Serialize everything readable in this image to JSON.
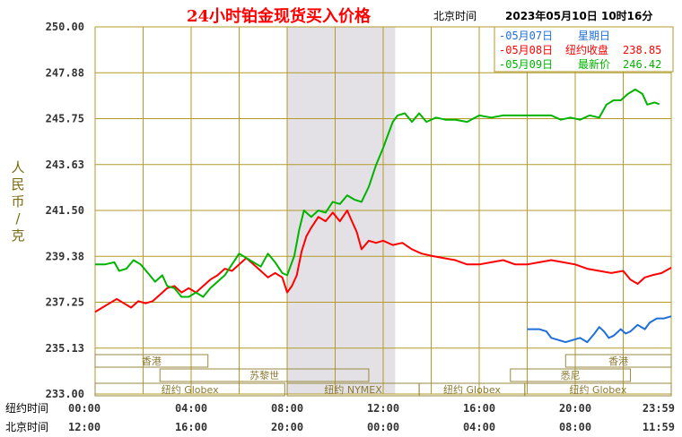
{
  "header": {
    "title": "24小时铂金现货买入价格",
    "timezone_label": "北京时间",
    "datetime": "2023年05月10日 10时16分"
  },
  "colors": {
    "grid": "#b39a2a",
    "blue": "#1e6fd9",
    "red": "#ff0000",
    "green": "#00b400",
    "shade": "#e3e0e6",
    "session": "#9a8a40"
  },
  "chart_data": {
    "type": "line",
    "title": "24小时铂金现货买入价格",
    "ylabel": "人民币/克",
    "ylim": [
      233.0,
      250.0
    ],
    "y_ticks": [
      "250.00",
      "247.88",
      "245.75",
      "243.63",
      "241.50",
      "239.38",
      "237.25",
      "235.13",
      "233.00"
    ],
    "x_ticks_ny": [
      "00:00",
      "04:00",
      "08:00",
      "12:00",
      "16:00",
      "20:00",
      "23:59"
    ],
    "x_ticks_bj": [
      "12:00",
      "16:00",
      "20:00",
      "00:00",
      "04:00",
      "08:00",
      "11:59"
    ],
    "x_row_labels": [
      "纽约时间",
      "北京时间"
    ],
    "xlim_hours": [
      0,
      24
    ],
    "shaded_hours": [
      8,
      12.5
    ],
    "legend": [
      {
        "prefix": "-05月07日",
        "label": "星期日",
        "value": "",
        "color": "#1e6fd9"
      },
      {
        "prefix": "-05月08日",
        "label": "纽约收盘",
        "value": "238.85",
        "color": "#ff0000"
      },
      {
        "prefix": "-05月09日",
        "label": "最新价",
        "value": "246.42",
        "color": "#00b400"
      }
    ],
    "sessions": [
      {
        "label": "香港",
        "start": 0.0,
        "end": 4.7
      },
      {
        "label": "苏黎世",
        "start": 2.7,
        "end": 11.4
      },
      {
        "label": "纽约 Globex",
        "start": 0.0,
        "end": 7.9
      },
      {
        "label": "纽约 NYMEX",
        "start": 8.0,
        "end": 13.5
      },
      {
        "label": "纽约 Globex",
        "start": 13.5,
        "end": 17.9
      },
      {
        "label": "香港",
        "start": 19.6,
        "end": 24.0
      },
      {
        "label": "悉尼",
        "start": 17.3,
        "end": 22.3
      },
      {
        "label": "纽约 Globex",
        "start": 17.9,
        "end": 24.0
      }
    ],
    "series": [
      {
        "name": "05月07日",
        "color": "#1e6fd9",
        "points": [
          [
            18.0,
            236.0
          ],
          [
            18.5,
            236.0
          ],
          [
            18.8,
            235.9
          ],
          [
            19.0,
            235.6
          ],
          [
            19.3,
            235.5
          ],
          [
            19.6,
            235.4
          ],
          [
            19.9,
            235.5
          ],
          [
            20.2,
            235.6
          ],
          [
            20.5,
            235.4
          ],
          [
            20.8,
            235.8
          ],
          [
            21.0,
            236.1
          ],
          [
            21.2,
            235.9
          ],
          [
            21.4,
            235.6
          ],
          [
            21.6,
            235.7
          ],
          [
            21.9,
            236.0
          ],
          [
            22.1,
            235.8
          ],
          [
            22.3,
            235.9
          ],
          [
            22.6,
            236.2
          ],
          [
            22.9,
            236.0
          ],
          [
            23.1,
            236.3
          ],
          [
            23.4,
            236.5
          ],
          [
            23.7,
            236.5
          ],
          [
            24.0,
            236.6
          ]
        ]
      },
      {
        "name": "05月08日",
        "color": "#ff0000",
        "points": [
          [
            0.0,
            236.8
          ],
          [
            0.3,
            237.0
          ],
          [
            0.6,
            237.2
          ],
          [
            0.9,
            237.4
          ],
          [
            1.2,
            237.2
          ],
          [
            1.5,
            237.0
          ],
          [
            1.8,
            237.3
          ],
          [
            2.1,
            237.2
          ],
          [
            2.4,
            237.3
          ],
          [
            2.7,
            237.6
          ],
          [
            3.0,
            237.9
          ],
          [
            3.3,
            238.0
          ],
          [
            3.6,
            237.7
          ],
          [
            3.9,
            237.9
          ],
          [
            4.2,
            237.7
          ],
          [
            4.5,
            238.0
          ],
          [
            4.8,
            238.3
          ],
          [
            5.1,
            238.5
          ],
          [
            5.4,
            238.8
          ],
          [
            5.7,
            238.7
          ],
          [
            6.0,
            239.0
          ],
          [
            6.3,
            239.3
          ],
          [
            6.6,
            239.0
          ],
          [
            6.9,
            238.7
          ],
          [
            7.2,
            238.4
          ],
          [
            7.5,
            238.6
          ],
          [
            7.8,
            238.4
          ],
          [
            8.0,
            237.7
          ],
          [
            8.2,
            238.0
          ],
          [
            8.4,
            238.5
          ],
          [
            8.6,
            239.6
          ],
          [
            8.8,
            240.3
          ],
          [
            9.0,
            240.7
          ],
          [
            9.3,
            241.2
          ],
          [
            9.6,
            241.0
          ],
          [
            9.9,
            241.4
          ],
          [
            10.2,
            241.0
          ],
          [
            10.5,
            241.5
          ],
          [
            10.7,
            241.0
          ],
          [
            10.9,
            240.5
          ],
          [
            11.1,
            239.7
          ],
          [
            11.4,
            240.1
          ],
          [
            11.7,
            240.0
          ],
          [
            12.0,
            240.1
          ],
          [
            12.4,
            239.9
          ],
          [
            12.8,
            240.0
          ],
          [
            13.2,
            239.7
          ],
          [
            13.6,
            239.5
          ],
          [
            14.0,
            239.4
          ],
          [
            14.5,
            239.3
          ],
          [
            15.0,
            239.2
          ],
          [
            15.5,
            239.0
          ],
          [
            16.0,
            239.0
          ],
          [
            16.5,
            239.1
          ],
          [
            17.0,
            239.2
          ],
          [
            17.5,
            239.0
          ],
          [
            18.0,
            239.0
          ],
          [
            18.5,
            239.1
          ],
          [
            19.0,
            239.2
          ],
          [
            19.5,
            239.1
          ],
          [
            20.0,
            239.0
          ],
          [
            20.5,
            238.8
          ],
          [
            21.0,
            238.7
          ],
          [
            21.5,
            238.6
          ],
          [
            22.0,
            238.7
          ],
          [
            22.3,
            238.3
          ],
          [
            22.6,
            238.1
          ],
          [
            22.9,
            238.4
          ],
          [
            23.2,
            238.5
          ],
          [
            23.6,
            238.6
          ],
          [
            24.0,
            238.85
          ]
        ]
      },
      {
        "name": "05月09日",
        "color": "#00b400",
        "points": [
          [
            0.0,
            239.0
          ],
          [
            0.4,
            239.0
          ],
          [
            0.8,
            239.1
          ],
          [
            1.0,
            238.7
          ],
          [
            1.3,
            238.8
          ],
          [
            1.6,
            239.2
          ],
          [
            1.9,
            239.0
          ],
          [
            2.2,
            238.6
          ],
          [
            2.5,
            238.2
          ],
          [
            2.8,
            238.5
          ],
          [
            3.0,
            238.0
          ],
          [
            3.3,
            237.9
          ],
          [
            3.6,
            237.5
          ],
          [
            3.9,
            237.5
          ],
          [
            4.2,
            237.7
          ],
          [
            4.5,
            237.5
          ],
          [
            4.8,
            237.9
          ],
          [
            5.1,
            238.2
          ],
          [
            5.4,
            238.5
          ],
          [
            5.7,
            239.0
          ],
          [
            6.0,
            239.5
          ],
          [
            6.3,
            239.3
          ],
          [
            6.6,
            239.1
          ],
          [
            6.9,
            238.9
          ],
          [
            7.2,
            239.5
          ],
          [
            7.5,
            239.1
          ],
          [
            7.8,
            238.6
          ],
          [
            8.0,
            238.5
          ],
          [
            8.3,
            239.4
          ],
          [
            8.5,
            240.6
          ],
          [
            8.7,
            241.5
          ],
          [
            9.0,
            241.2
          ],
          [
            9.3,
            241.5
          ],
          [
            9.6,
            241.4
          ],
          [
            9.9,
            241.9
          ],
          [
            10.2,
            241.8
          ],
          [
            10.5,
            242.2
          ],
          [
            10.8,
            242.0
          ],
          [
            11.1,
            241.9
          ],
          [
            11.4,
            242.6
          ],
          [
            11.7,
            243.6
          ],
          [
            12.0,
            244.4
          ],
          [
            12.2,
            245.0
          ],
          [
            12.4,
            245.6
          ],
          [
            12.6,
            245.9
          ],
          [
            12.9,
            246.0
          ],
          [
            13.2,
            245.6
          ],
          [
            13.5,
            246.0
          ],
          [
            13.8,
            245.6
          ],
          [
            14.2,
            245.8
          ],
          [
            14.6,
            245.7
          ],
          [
            15.0,
            245.7
          ],
          [
            15.5,
            245.6
          ],
          [
            16.0,
            245.9
          ],
          [
            16.5,
            245.8
          ],
          [
            17.0,
            245.9
          ],
          [
            17.5,
            245.9
          ],
          [
            18.0,
            245.9
          ],
          [
            18.5,
            245.9
          ],
          [
            19.0,
            245.9
          ],
          [
            19.4,
            245.7
          ],
          [
            19.8,
            245.8
          ],
          [
            20.2,
            245.7
          ],
          [
            20.6,
            245.9
          ],
          [
            21.0,
            245.8
          ],
          [
            21.3,
            246.4
          ],
          [
            21.6,
            246.6
          ],
          [
            21.9,
            246.6
          ],
          [
            22.2,
            246.9
          ],
          [
            22.5,
            247.1
          ],
          [
            22.8,
            246.9
          ],
          [
            23.0,
            246.4
          ],
          [
            23.3,
            246.5
          ],
          [
            23.5,
            246.42
          ]
        ]
      }
    ]
  }
}
